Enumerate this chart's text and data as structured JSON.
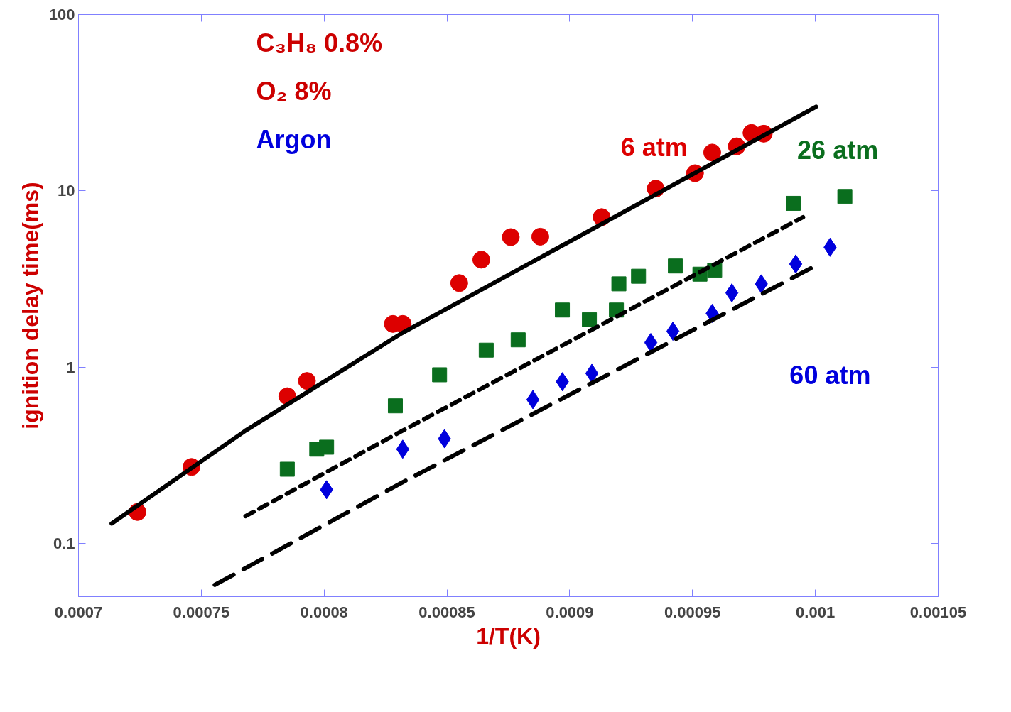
{
  "chart_data": {
    "type": "scatter",
    "xlabel": "1/T(K)",
    "ylabel": "ignition delay time(ms)",
    "log": "y",
    "grid": false,
    "xlim": [
      0.0007,
      0.00105
    ],
    "xticks": [
      0.0007,
      0.00075,
      0.0008,
      0.00085,
      0.0009,
      0.00095,
      0.001,
      0.00105
    ],
    "ylim": [
      0.05,
      100
    ],
    "yticks": [
      0.1,
      1,
      10,
      100
    ],
    "series": [
      {
        "name": "6 atm",
        "marker": "circle",
        "color": "#dd0000",
        "x": [
          0.000724,
          0.000746,
          0.000785,
          0.000793,
          0.000828,
          0.000832,
          0.000855,
          0.000864,
          0.000876,
          0.000888,
          0.000913,
          0.000935,
          0.000951,
          0.000958,
          0.000968,
          0.000974,
          0.000979
        ],
        "values": [
          0.151,
          0.272,
          0.685,
          0.836,
          1.76,
          1.76,
          3.0,
          4.07,
          5.47,
          5.5,
          7.1,
          10.3,
          12.6,
          16.5,
          17.9,
          21.3,
          21.1
        ]
      },
      {
        "name": "26 atm",
        "marker": "square",
        "color": "#0a6e1e",
        "x": [
          0.000785,
          0.000797,
          0.000801,
          0.000829,
          0.000847,
          0.000866,
          0.000879,
          0.000897,
          0.000908,
          0.000919,
          0.00092,
          0.000928,
          0.000943,
          0.000953,
          0.000959,
          0.000991,
          0.001012
        ],
        "values": [
          0.264,
          0.343,
          0.352,
          0.604,
          0.906,
          1.25,
          1.43,
          2.11,
          1.86,
          2.11,
          2.97,
          3.28,
          3.75,
          3.37,
          3.55,
          8.5,
          9.3
        ]
      },
      {
        "name": "60 atm",
        "marker": "diamond",
        "color": "#0000dd",
        "x": [
          0.000801,
          0.000832,
          0.000849,
          0.000885,
          0.000897,
          0.000909,
          0.000933,
          0.000942,
          0.000958,
          0.000966,
          0.000978,
          0.000992,
          0.001006
        ],
        "values": [
          0.202,
          0.343,
          0.393,
          0.655,
          0.828,
          0.923,
          1.38,
          1.6,
          2.02,
          2.64,
          2.97,
          3.85,
          4.79
        ]
      },
      {
        "type": "line",
        "line_style": "solid",
        "color": "#000000",
        "x": [
          0.0007135,
          0.000768,
          0.000831,
          0.0010003
        ],
        "values": [
          0.13,
          0.437,
          1.54,
          30
        ]
      },
      {
        "type": "line",
        "line_style": "dashed",
        "color": "#000000",
        "x": [
          0.000768,
          0.000831,
          0.000995
        ],
        "values": [
          0.143,
          0.43,
          7.1
        ]
      },
      {
        "type": "line",
        "line_style": "dashed",
        "color": "#000000",
        "x": [
          0.0007555,
          0.000831,
          0.001001
        ],
        "values": [
          0.0583,
          0.219,
          3.82
        ]
      }
    ],
    "annotations": [
      "C₃H₈   0.8%",
      "O₂      8%",
      "Argon"
    ]
  }
}
